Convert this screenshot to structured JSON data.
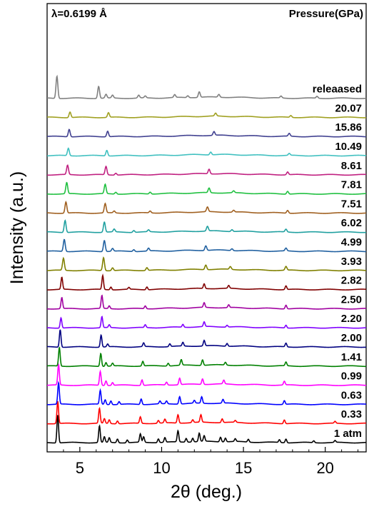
{
  "chart_data": {
    "type": "line",
    "wavelength_label": "λ=0.6199 Å",
    "legend_title": "Pressure(GPa)",
    "xlabel": "2θ (deg.)",
    "ylabel": "Intensity (a.u.)",
    "xlim": [
      3.0,
      22.5
    ],
    "xticks": [
      5,
      10,
      15,
      20
    ],
    "x_tick_labels": [
      "5",
      "10",
      "15",
      "20"
    ],
    "series": [
      {
        "name": "1 atm",
        "color": "#000000",
        "peaks": [
          [
            3.65,
            3.0
          ],
          [
            6.2,
            1.8
          ],
          [
            6.5,
            0.6
          ],
          [
            6.8,
            0.5
          ],
          [
            7.3,
            0.4
          ],
          [
            7.9,
            0.3
          ],
          [
            8.7,
            0.9
          ],
          [
            8.9,
            0.6
          ],
          [
            9.8,
            0.4
          ],
          [
            10.2,
            0.5
          ],
          [
            11.0,
            1.2
          ],
          [
            11.5,
            0.4
          ],
          [
            11.9,
            0.4
          ],
          [
            12.3,
            0.9
          ],
          [
            12.6,
            0.6
          ],
          [
            13.6,
            0.5
          ],
          [
            13.9,
            0.4
          ],
          [
            14.5,
            0.3
          ],
          [
            15.3,
            0.3
          ],
          [
            17.2,
            0.3
          ],
          [
            17.6,
            0.4
          ],
          [
            19.3,
            0.2
          ],
          [
            20.6,
            0.2
          ]
        ]
      },
      {
        "name": "0.33",
        "color": "#ff0000",
        "peaks": [
          [
            3.65,
            2.4
          ],
          [
            6.2,
            1.6
          ],
          [
            6.5,
            0.5
          ],
          [
            6.8,
            0.4
          ],
          [
            7.3,
            0.3
          ],
          [
            8.7,
            0.7
          ],
          [
            9.8,
            0.3
          ],
          [
            10.2,
            0.4
          ],
          [
            11.0,
            0.9
          ],
          [
            11.9,
            0.3
          ],
          [
            12.4,
            0.8
          ],
          [
            13.7,
            0.4
          ],
          [
            14.5,
            0.2
          ],
          [
            17.5,
            0.4
          ],
          [
            20.6,
            0.2
          ]
        ]
      },
      {
        "name": "0.63",
        "color": "#0000ff",
        "peaks": [
          [
            3.7,
            2.3
          ],
          [
            6.25,
            1.5
          ],
          [
            6.55,
            0.5
          ],
          [
            6.9,
            0.4
          ],
          [
            7.4,
            0.3
          ],
          [
            8.75,
            0.6
          ],
          [
            9.9,
            0.3
          ],
          [
            10.3,
            0.3
          ],
          [
            11.1,
            0.8
          ],
          [
            12.0,
            0.3
          ],
          [
            12.45,
            0.7
          ],
          [
            13.75,
            0.4
          ],
          [
            17.5,
            0.4
          ]
        ]
      },
      {
        "name": "0.99",
        "color": "#ff00ff",
        "peaks": [
          [
            3.7,
            2.2
          ],
          [
            6.25,
            1.5
          ],
          [
            6.6,
            0.5
          ],
          [
            7.0,
            0.3
          ],
          [
            8.8,
            0.6
          ],
          [
            10.3,
            0.3
          ],
          [
            11.1,
            0.7
          ],
          [
            12.5,
            0.6
          ],
          [
            13.8,
            0.4
          ],
          [
            17.5,
            0.4
          ]
        ]
      },
      {
        "name": "1.41",
        "color": "#008000",
        "peaks": [
          [
            3.75,
            2.0
          ],
          [
            6.28,
            1.4
          ],
          [
            6.6,
            0.4
          ],
          [
            7.0,
            0.3
          ],
          [
            8.85,
            0.5
          ],
          [
            10.4,
            0.3
          ],
          [
            11.2,
            0.6
          ],
          [
            12.5,
            0.6
          ],
          [
            13.9,
            0.3
          ],
          [
            17.6,
            0.4
          ]
        ]
      },
      {
        "name": "2.00",
        "color": "#000080",
        "peaks": [
          [
            3.8,
            1.9
          ],
          [
            6.3,
            1.3
          ],
          [
            6.7,
            0.3
          ],
          [
            8.9,
            0.4
          ],
          [
            10.5,
            0.3
          ],
          [
            11.3,
            0.4
          ],
          [
            12.6,
            0.6
          ],
          [
            14.0,
            0.3
          ],
          [
            17.6,
            0.4
          ]
        ]
      },
      {
        "name": "2.20",
        "color": "#8000ff",
        "peaks": [
          [
            3.85,
            1.1
          ],
          [
            6.35,
            1.2
          ],
          [
            6.8,
            0.3
          ],
          [
            9.0,
            0.3
          ],
          [
            11.3,
            0.3
          ],
          [
            12.6,
            0.5
          ],
          [
            14.0,
            0.2
          ],
          [
            17.6,
            0.3
          ]
        ]
      },
      {
        "name": "2.50",
        "color": "#a000a0",
        "peaks": [
          [
            3.9,
            1.2
          ],
          [
            6.35,
            1.4
          ],
          [
            6.8,
            0.3
          ],
          [
            9.0,
            0.3
          ],
          [
            12.6,
            0.5
          ],
          [
            14.1,
            0.3
          ],
          [
            17.6,
            0.4
          ]
        ]
      },
      {
        "name": "2.82",
        "color": "#800000",
        "peaks": [
          [
            3.9,
            1.3
          ],
          [
            6.4,
            1.5
          ],
          [
            6.9,
            0.3
          ],
          [
            8.0,
            0.2
          ],
          [
            9.1,
            0.3
          ],
          [
            12.6,
            0.5
          ],
          [
            14.1,
            0.3
          ],
          [
            17.6,
            0.4
          ]
        ]
      },
      {
        "name": "3.93",
        "color": "#808000",
        "peaks": [
          [
            4.0,
            1.3
          ],
          [
            6.45,
            1.4
          ],
          [
            7.0,
            0.3
          ],
          [
            9.1,
            0.3
          ],
          [
            12.7,
            0.5
          ],
          [
            14.2,
            0.3
          ],
          [
            17.6,
            0.4
          ]
        ]
      },
      {
        "name": "4.99",
        "color": "#2060a0",
        "peaks": [
          [
            4.05,
            1.3
          ],
          [
            6.5,
            1.2
          ],
          [
            7.0,
            0.3
          ],
          [
            8.3,
            0.2
          ],
          [
            9.2,
            0.3
          ],
          [
            12.7,
            0.5
          ],
          [
            14.3,
            0.2
          ],
          [
            17.6,
            0.3
          ]
        ]
      },
      {
        "name": "6.02",
        "color": "#20a0a0",
        "peaks": [
          [
            4.1,
            1.3
          ],
          [
            6.5,
            1.1
          ],
          [
            7.1,
            0.3
          ],
          [
            8.3,
            0.2
          ],
          [
            9.2,
            0.2
          ],
          [
            12.8,
            0.5
          ],
          [
            14.3,
            0.2
          ],
          [
            17.6,
            0.3
          ]
        ]
      },
      {
        "name": "7.51",
        "color": "#a06020",
        "peaks": [
          [
            4.15,
            1.2
          ],
          [
            6.55,
            1.0
          ],
          [
            7.1,
            0.2
          ],
          [
            9.3,
            0.2
          ],
          [
            12.8,
            0.5
          ],
          [
            14.4,
            0.2
          ],
          [
            17.7,
            0.3
          ]
        ]
      },
      {
        "name": "7.81",
        "color": "#20c040",
        "peaks": [
          [
            4.2,
            1.2
          ],
          [
            6.55,
            1.0
          ],
          [
            7.2,
            0.2
          ],
          [
            9.3,
            0.2
          ],
          [
            12.9,
            0.5
          ],
          [
            14.4,
            0.2
          ],
          [
            17.7,
            0.3
          ]
        ]
      },
      {
        "name": "8.61",
        "color": "#c02080",
        "peaks": [
          [
            4.25,
            1.0
          ],
          [
            6.6,
            0.9
          ],
          [
            7.2,
            0.2
          ],
          [
            12.9,
            0.5
          ],
          [
            17.7,
            0.3
          ]
        ]
      },
      {
        "name": "10.49",
        "color": "#40c0c0",
        "peaks": [
          [
            4.3,
            0.8
          ],
          [
            6.65,
            0.6
          ],
          [
            13.0,
            0.3
          ],
          [
            17.8,
            0.2
          ]
        ]
      },
      {
        "name": "15.86",
        "color": "#404090",
        "peaks": [
          [
            4.35,
            0.8
          ],
          [
            6.7,
            0.6
          ],
          [
            13.2,
            0.4
          ],
          [
            17.8,
            0.3
          ]
        ]
      },
      {
        "name": "20.07",
        "color": "#a0a020",
        "peaks": [
          [
            4.4,
            0.6
          ],
          [
            6.75,
            0.5
          ],
          [
            13.3,
            0.3
          ],
          [
            17.9,
            0.2
          ]
        ]
      },
      {
        "name": "releaased",
        "color": "#808080",
        "peaks": [
          [
            3.6,
            2.4
          ],
          [
            6.15,
            1.3
          ],
          [
            6.6,
            0.4
          ],
          [
            7.0,
            0.3
          ],
          [
            8.6,
            0.3
          ],
          [
            9.0,
            0.2
          ],
          [
            10.8,
            0.3
          ],
          [
            11.6,
            0.2
          ],
          [
            12.3,
            0.6
          ],
          [
            13.5,
            0.3
          ],
          [
            17.3,
            0.2
          ],
          [
            19.5,
            0.2
          ]
        ]
      }
    ]
  }
}
